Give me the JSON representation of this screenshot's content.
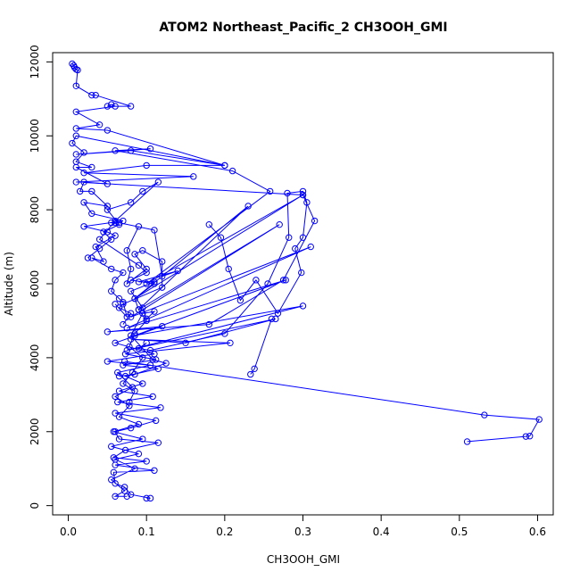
{
  "chart_data": {
    "type": "line",
    "title": "ATOM2 Northeast_Pacific_2 CH3OOH_GMI",
    "xlabel": "CH3OOH_GMI",
    "ylabel": "Altitude (m)",
    "xlim": [
      -0.02,
      0.62
    ],
    "ylim": [
      -250,
      12250
    ],
    "xticks": [
      0.0,
      0.1,
      0.2,
      0.3,
      0.4,
      0.5,
      0.6
    ],
    "xtick_labels": [
      "0.0",
      "0.1",
      "0.2",
      "0.3",
      "0.4",
      "0.5",
      "0.6"
    ],
    "yticks": [
      0,
      2000,
      4000,
      6000,
      8000,
      10000,
      12000
    ],
    "ytick_labels": [
      "0",
      "2000",
      "4000",
      "6000",
      "8000",
      "10000",
      "12000"
    ],
    "grid": false,
    "series_color": "#0000ff",
    "series": [
      {
        "marker": "open-circle",
        "points": [
          [
            0.1,
            200
          ],
          [
            0.105,
            200
          ],
          [
            0.08,
            300
          ],
          [
            0.072,
            500
          ],
          [
            0.06,
            600
          ],
          [
            0.058,
            900
          ],
          [
            0.11,
            950
          ],
          [
            0.06,
            1100
          ],
          [
            0.1,
            1200
          ],
          [
            0.058,
            1300
          ],
          [
            0.073,
            1500
          ],
          [
            0.115,
            1700
          ],
          [
            0.065,
            1800
          ],
          [
            0.06,
            2000
          ],
          [
            0.08,
            2100
          ],
          [
            0.112,
            2300
          ],
          [
            0.06,
            2500
          ],
          [
            0.118,
            2650
          ],
          [
            0.063,
            2800
          ],
          [
            0.108,
            2950
          ],
          [
            0.065,
            3100
          ],
          [
            0.095,
            3300
          ],
          [
            0.073,
            3500
          ],
          [
            0.115,
            3700
          ],
          [
            0.07,
            3800
          ],
          [
            0.112,
            3950
          ],
          [
            0.073,
            4100
          ],
          [
            0.207,
            4400
          ],
          [
            0.08,
            4500
          ],
          [
            0.15,
            4400
          ],
          [
            0.265,
            5050
          ],
          [
            0.075,
            4200
          ],
          [
            0.3,
            5400
          ],
          [
            0.085,
            4600
          ],
          [
            0.278,
            6100
          ],
          [
            0.075,
            4800
          ],
          [
            0.31,
            7000
          ],
          [
            0.08,
            5100
          ],
          [
            0.27,
            7600
          ],
          [
            0.09,
            5300
          ],
          [
            0.23,
            8100
          ],
          [
            0.085,
            5600
          ],
          [
            0.3,
            8400
          ],
          [
            0.1,
            6000
          ],
          [
            0.258,
            8500
          ],
          [
            0.21,
            9050
          ],
          [
            0.06,
            9600
          ],
          [
            0.105,
            9650
          ],
          [
            0.01,
            9500
          ],
          [
            0.08,
            9600
          ],
          [
            0.2,
            9200
          ],
          [
            0.1,
            9200
          ],
          [
            0.02,
            9000
          ],
          [
            0.16,
            8900
          ],
          [
            0.01,
            8750
          ],
          [
            0.3,
            8400
          ],
          [
            0.315,
            7700
          ],
          [
            0.275,
            6100
          ],
          [
            0.18,
            4900
          ],
          [
            0.05,
            4700
          ],
          [
            0.12,
            4850
          ],
          [
            0.06,
            4400
          ],
          [
            0.11,
            4100
          ],
          [
            0.05,
            3900
          ],
          [
            0.105,
            3800
          ],
          [
            0.063,
            3600
          ],
          [
            0.082,
            3200
          ],
          [
            0.06,
            2950
          ],
          [
            0.078,
            2700
          ],
          [
            0.065,
            2400
          ],
          [
            0.09,
            2200
          ],
          [
            0.058,
            2000
          ],
          [
            0.095,
            1800
          ],
          [
            0.055,
            1600
          ],
          [
            0.09,
            1400
          ],
          [
            0.06,
            1250
          ],
          [
            0.085,
            1000
          ],
          [
            0.055,
            700
          ],
          [
            0.072,
            400
          ],
          [
            0.06,
            250
          ],
          [
            0.075,
            250
          ]
        ]
      },
      {
        "marker": "open-circle",
        "points": [
          [
            0.233,
            3550
          ],
          [
            0.238,
            3700
          ],
          [
            0.26,
            5050
          ]
        ]
      },
      {
        "marker": "open-circle",
        "points": [
          [
            0.072,
            3900
          ],
          [
            0.532,
            2450
          ],
          [
            0.602,
            2330
          ],
          [
            0.59,
            1880
          ],
          [
            0.51,
            1730
          ],
          [
            0.585,
            1870
          ]
        ]
      },
      {
        "marker": "open-circle",
        "points": [
          [
            0.005,
            11950
          ],
          [
            0.007,
            11900
          ],
          [
            0.008,
            11850
          ],
          [
            0.01,
            11800
          ],
          [
            0.012,
            11780
          ],
          [
            0.01,
            11350
          ],
          [
            0.03,
            11100
          ],
          [
            0.035,
            11100
          ],
          [
            0.08,
            10800
          ],
          [
            0.05,
            10800
          ],
          [
            0.055,
            10850
          ],
          [
            0.06,
            10800
          ],
          [
            0.01,
            10650
          ],
          [
            0.04,
            10300
          ],
          [
            0.01,
            10200
          ],
          [
            0.05,
            10150
          ],
          [
            0.2,
            9200
          ],
          [
            0.01,
            10000
          ],
          [
            0.005,
            9800
          ],
          [
            0.02,
            9550
          ],
          [
            0.01,
            9300
          ],
          [
            0.03,
            9150
          ],
          [
            0.01,
            9150
          ],
          [
            0.05,
            8700
          ],
          [
            0.02,
            8750
          ],
          [
            0.015,
            8500
          ],
          [
            0.03,
            8500
          ],
          [
            0.05,
            8100
          ],
          [
            0.02,
            8200
          ],
          [
            0.03,
            7900
          ],
          [
            0.07,
            7700
          ],
          [
            0.02,
            7550
          ],
          [
            0.05,
            7400
          ],
          [
            0.06,
            7300
          ],
          [
            0.035,
            7000
          ],
          [
            0.045,
            6600
          ],
          [
            0.03,
            6700
          ],
          [
            0.055,
            6400
          ],
          [
            0.07,
            6300
          ],
          [
            0.06,
            6100
          ],
          [
            0.055,
            5800
          ],
          [
            0.065,
            5600
          ],
          [
            0.07,
            5500
          ],
          [
            0.075,
            5100
          ],
          [
            0.06,
            5450
          ]
        ]
      },
      {
        "marker": "open-circle",
        "points": [
          [
            0.055,
            7650
          ],
          [
            0.06,
            7650
          ],
          [
            0.065,
            7650
          ],
          [
            0.11,
            7450
          ],
          [
            0.12,
            6200
          ],
          [
            0.14,
            6350
          ],
          [
            0.09,
            6050
          ],
          [
            0.11,
            6050
          ],
          [
            0.08,
            5800
          ],
          [
            0.095,
            5350
          ],
          [
            0.1,
            5050
          ],
          [
            0.11,
            5250
          ],
          [
            0.095,
            5200
          ],
          [
            0.08,
            4600
          ],
          [
            0.108,
            3950
          ],
          [
            0.125,
            3850
          ],
          [
            0.085,
            3550
          ],
          [
            0.065,
            3500
          ]
        ]
      },
      {
        "marker": "open-circle",
        "points": [
          [
            0.09,
            7550
          ],
          [
            0.075,
            6900
          ],
          [
            0.08,
            6400
          ],
          [
            0.075,
            6000
          ],
          [
            0.1,
            6400
          ],
          [
            0.085,
            6800
          ],
          [
            0.095,
            6900
          ],
          [
            0.12,
            6600
          ],
          [
            0.12,
            5900
          ],
          [
            0.07,
            5450
          ],
          [
            0.065,
            5350
          ],
          [
            0.08,
            5200
          ],
          [
            0.07,
            4900
          ]
        ]
      },
      {
        "marker": "open-circle",
        "points": [
          [
            0.18,
            7600
          ],
          [
            0.195,
            7250
          ],
          [
            0.205,
            6400
          ],
          [
            0.22,
            5550
          ],
          [
            0.24,
            6100
          ],
          [
            0.268,
            5200
          ],
          [
            0.298,
            6300
          ],
          [
            0.29,
            6950
          ],
          [
            0.3,
            7250
          ],
          [
            0.305,
            8200
          ],
          [
            0.3,
            8500
          ],
          [
            0.28,
            8450
          ],
          [
            0.282,
            7250
          ],
          [
            0.255,
            6000
          ],
          [
            0.2,
            4650
          ],
          [
            0.105,
            4200
          ],
          [
            0.09,
            4250
          ],
          [
            0.1,
            4400
          ]
        ]
      },
      {
        "marker": "open-circle",
        "points": [
          [
            0.025,
            6700
          ],
          [
            0.04,
            6950
          ],
          [
            0.055,
            7200
          ],
          [
            0.045,
            7400
          ],
          [
            0.065,
            7600
          ],
          [
            0.05,
            8000
          ],
          [
            0.08,
            8200
          ],
          [
            0.095,
            8500
          ],
          [
            0.115,
            8750
          ],
          [
            0.06,
            7700
          ],
          [
            0.04,
            7200
          ],
          [
            0.09,
            6500
          ],
          [
            0.1,
            6300
          ],
          [
            0.08,
            6100
          ],
          [
            0.11,
            6000
          ],
          [
            0.085,
            5600
          ],
          [
            0.09,
            5300
          ],
          [
            0.1,
            5000
          ],
          [
            0.085,
            4650
          ],
          [
            0.078,
            4300
          ],
          [
            0.095,
            4000
          ],
          [
            0.082,
            3600
          ],
          [
            0.07,
            3300
          ],
          [
            0.085,
            3100
          ],
          [
            0.078,
            2800
          ]
        ]
      }
    ]
  }
}
